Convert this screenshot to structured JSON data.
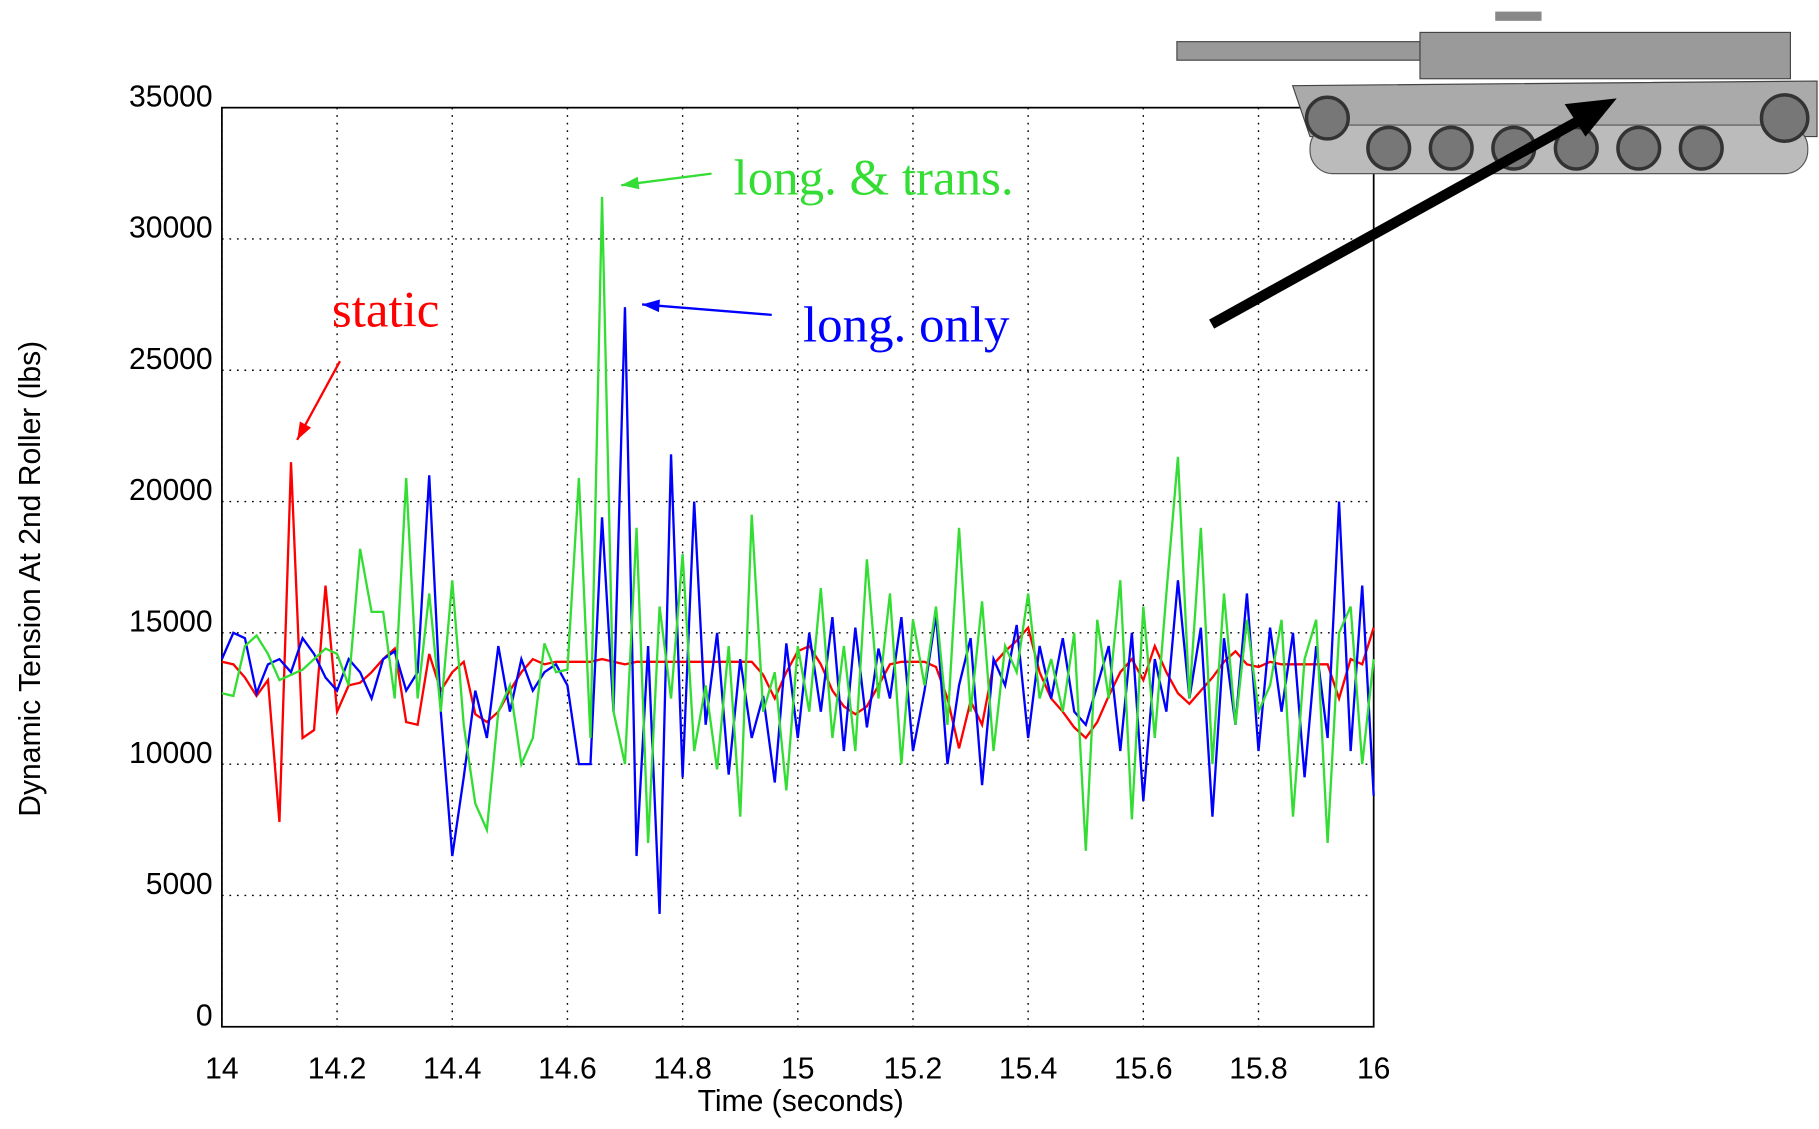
{
  "chart_data": {
    "type": "line",
    "xlabel": "Time (seconds)",
    "ylabel": "Dynamic Tension At 2nd Roller (lbs)",
    "xlim": [
      14,
      16
    ],
    "xticks": [
      14,
      14.2,
      14.4,
      14.6,
      14.8,
      15,
      15.2,
      15.4,
      15.6,
      15.8,
      16
    ],
    "ylim": [
      0,
      35000
    ],
    "yticks": [
      0,
      5000,
      10000,
      15000,
      20000,
      25000,
      30000,
      35000
    ],
    "grid": true,
    "x": [
      14,
      14.02,
      14.04,
      14.06,
      14.08,
      14.1,
      14.12,
      14.14,
      14.16,
      14.18,
      14.2,
      14.22,
      14.24,
      14.26,
      14.28,
      14.3,
      14.32,
      14.34,
      14.36,
      14.38,
      14.4,
      14.42,
      14.44,
      14.46,
      14.48,
      14.5,
      14.52,
      14.54,
      14.56,
      14.58,
      14.6,
      14.62,
      14.64,
      14.66,
      14.68,
      14.7,
      14.72,
      14.74,
      14.76,
      14.78,
      14.8,
      14.82,
      14.84,
      14.86,
      14.88,
      14.9,
      14.92,
      14.94,
      14.96,
      14.98,
      15,
      15.02,
      15.04,
      15.06,
      15.08,
      15.1,
      15.12,
      15.14,
      15.16,
      15.18,
      15.2,
      15.22,
      15.24,
      15.26,
      15.28,
      15.3,
      15.32,
      15.34,
      15.36,
      15.38,
      15.4,
      15.42,
      15.44,
      15.46,
      15.48,
      15.5,
      15.52,
      15.54,
      15.56,
      15.58,
      15.6,
      15.62,
      15.64,
      15.66,
      15.68,
      15.7,
      15.72,
      15.74,
      15.76,
      15.78,
      15.8,
      15.82,
      15.84,
      15.86,
      15.88,
      15.9,
      15.92,
      15.94,
      15.96,
      15.98,
      16
    ],
    "series": [
      {
        "name": "static",
        "color": "#ff0000",
        "values": [
          13900,
          13800,
          13300,
          12600,
          13200,
          7800,
          21500,
          11000,
          11300,
          16800,
          12000,
          13000,
          13100,
          13500,
          14000,
          14400,
          11600,
          11500,
          14200,
          12800,
          13500,
          13900,
          11900,
          11600,
          12000,
          12800,
          13500,
          14000,
          13800,
          13900,
          13900,
          13900,
          13900,
          14000,
          13900,
          13800,
          13900,
          13900,
          13900,
          13900,
          13900,
          13900,
          13900,
          13900,
          13900,
          13900,
          13900,
          13400,
          12500,
          13500,
          14300,
          14500,
          13800,
          12800,
          12200,
          11900,
          12200,
          13000,
          13800,
          13900,
          13900,
          13900,
          13700,
          12500,
          10600,
          12400,
          11500,
          13800,
          14300,
          14700,
          15200,
          13500,
          12500,
          12000,
          11400,
          11000,
          11600,
          12600,
          13500,
          14000,
          13200,
          14500,
          13500,
          12700,
          12300,
          12800,
          13300,
          13900,
          14300,
          13800,
          13700,
          13900,
          13800,
          13800,
          13800,
          13800,
          13800,
          12500,
          14000,
          13800,
          15200
        ]
      },
      {
        "name": "long. only",
        "color": "#0000ff",
        "values": [
          14000,
          15000,
          14800,
          12700,
          13800,
          14000,
          13500,
          14800,
          14200,
          13300,
          12800,
          14000,
          13500,
          12500,
          14000,
          14300,
          12800,
          13500,
          21000,
          12000,
          6500,
          9500,
          12800,
          11000,
          14500,
          12000,
          14000,
          12800,
          13500,
          13800,
          13000,
          10000,
          10000,
          19400,
          12000,
          27400,
          6500,
          14500,
          4300,
          21800,
          9500,
          20000,
          11500,
          15000,
          9600,
          14000,
          11000,
          12600,
          9300,
          14600,
          11000,
          15000,
          12000,
          15600,
          10500,
          15200,
          11400,
          14400,
          12500,
          15600,
          10500,
          12800,
          15700,
          10000,
          13000,
          14800,
          9200,
          14000,
          13000,
          15300,
          11000,
          14500,
          12500,
          14800,
          12000,
          11500,
          13000,
          14500,
          10500,
          15000,
          8600,
          14000,
          12000,
          17000,
          12500,
          15200,
          8000,
          14800,
          11500,
          16500,
          10500,
          15200,
          12000,
          15000,
          9500,
          14500,
          11000,
          20000,
          10500,
          16800,
          8800
        ]
      },
      {
        "name": "long. & trans.",
        "color": "#33dd33",
        "values": [
          12700,
          12600,
          14500,
          14900,
          14200,
          13200,
          13400,
          13600,
          14000,
          14400,
          14200,
          13000,
          18200,
          15800,
          15800,
          12500,
          20900,
          12500,
          16500,
          12000,
          17000,
          11500,
          8500,
          7500,
          12000,
          13000,
          10000,
          11000,
          14600,
          13500,
          13600,
          20900,
          11000,
          31600,
          12000,
          10000,
          19000,
          7000,
          16000,
          12500,
          18000,
          10500,
          13000,
          9800,
          14500,
          8000,
          19500,
          12000,
          13500,
          9000,
          14500,
          12000,
          16700,
          11000,
          14500,
          10500,
          17800,
          12500,
          16500,
          10000,
          15500,
          13000,
          16000,
          11500,
          19000,
          12000,
          16200,
          10500,
          14500,
          13500,
          16500,
          12500,
          14000,
          12000,
          15000,
          6700,
          15500,
          12500,
          17000,
          7900,
          16000,
          11000,
          16500,
          21700,
          12500,
          19000,
          10000,
          16500,
          11500,
          15500,
          12000,
          13000,
          15500,
          8000,
          14000,
          15500,
          7000,
          15000,
          16000,
          10000,
          14000
        ]
      }
    ]
  }
}
